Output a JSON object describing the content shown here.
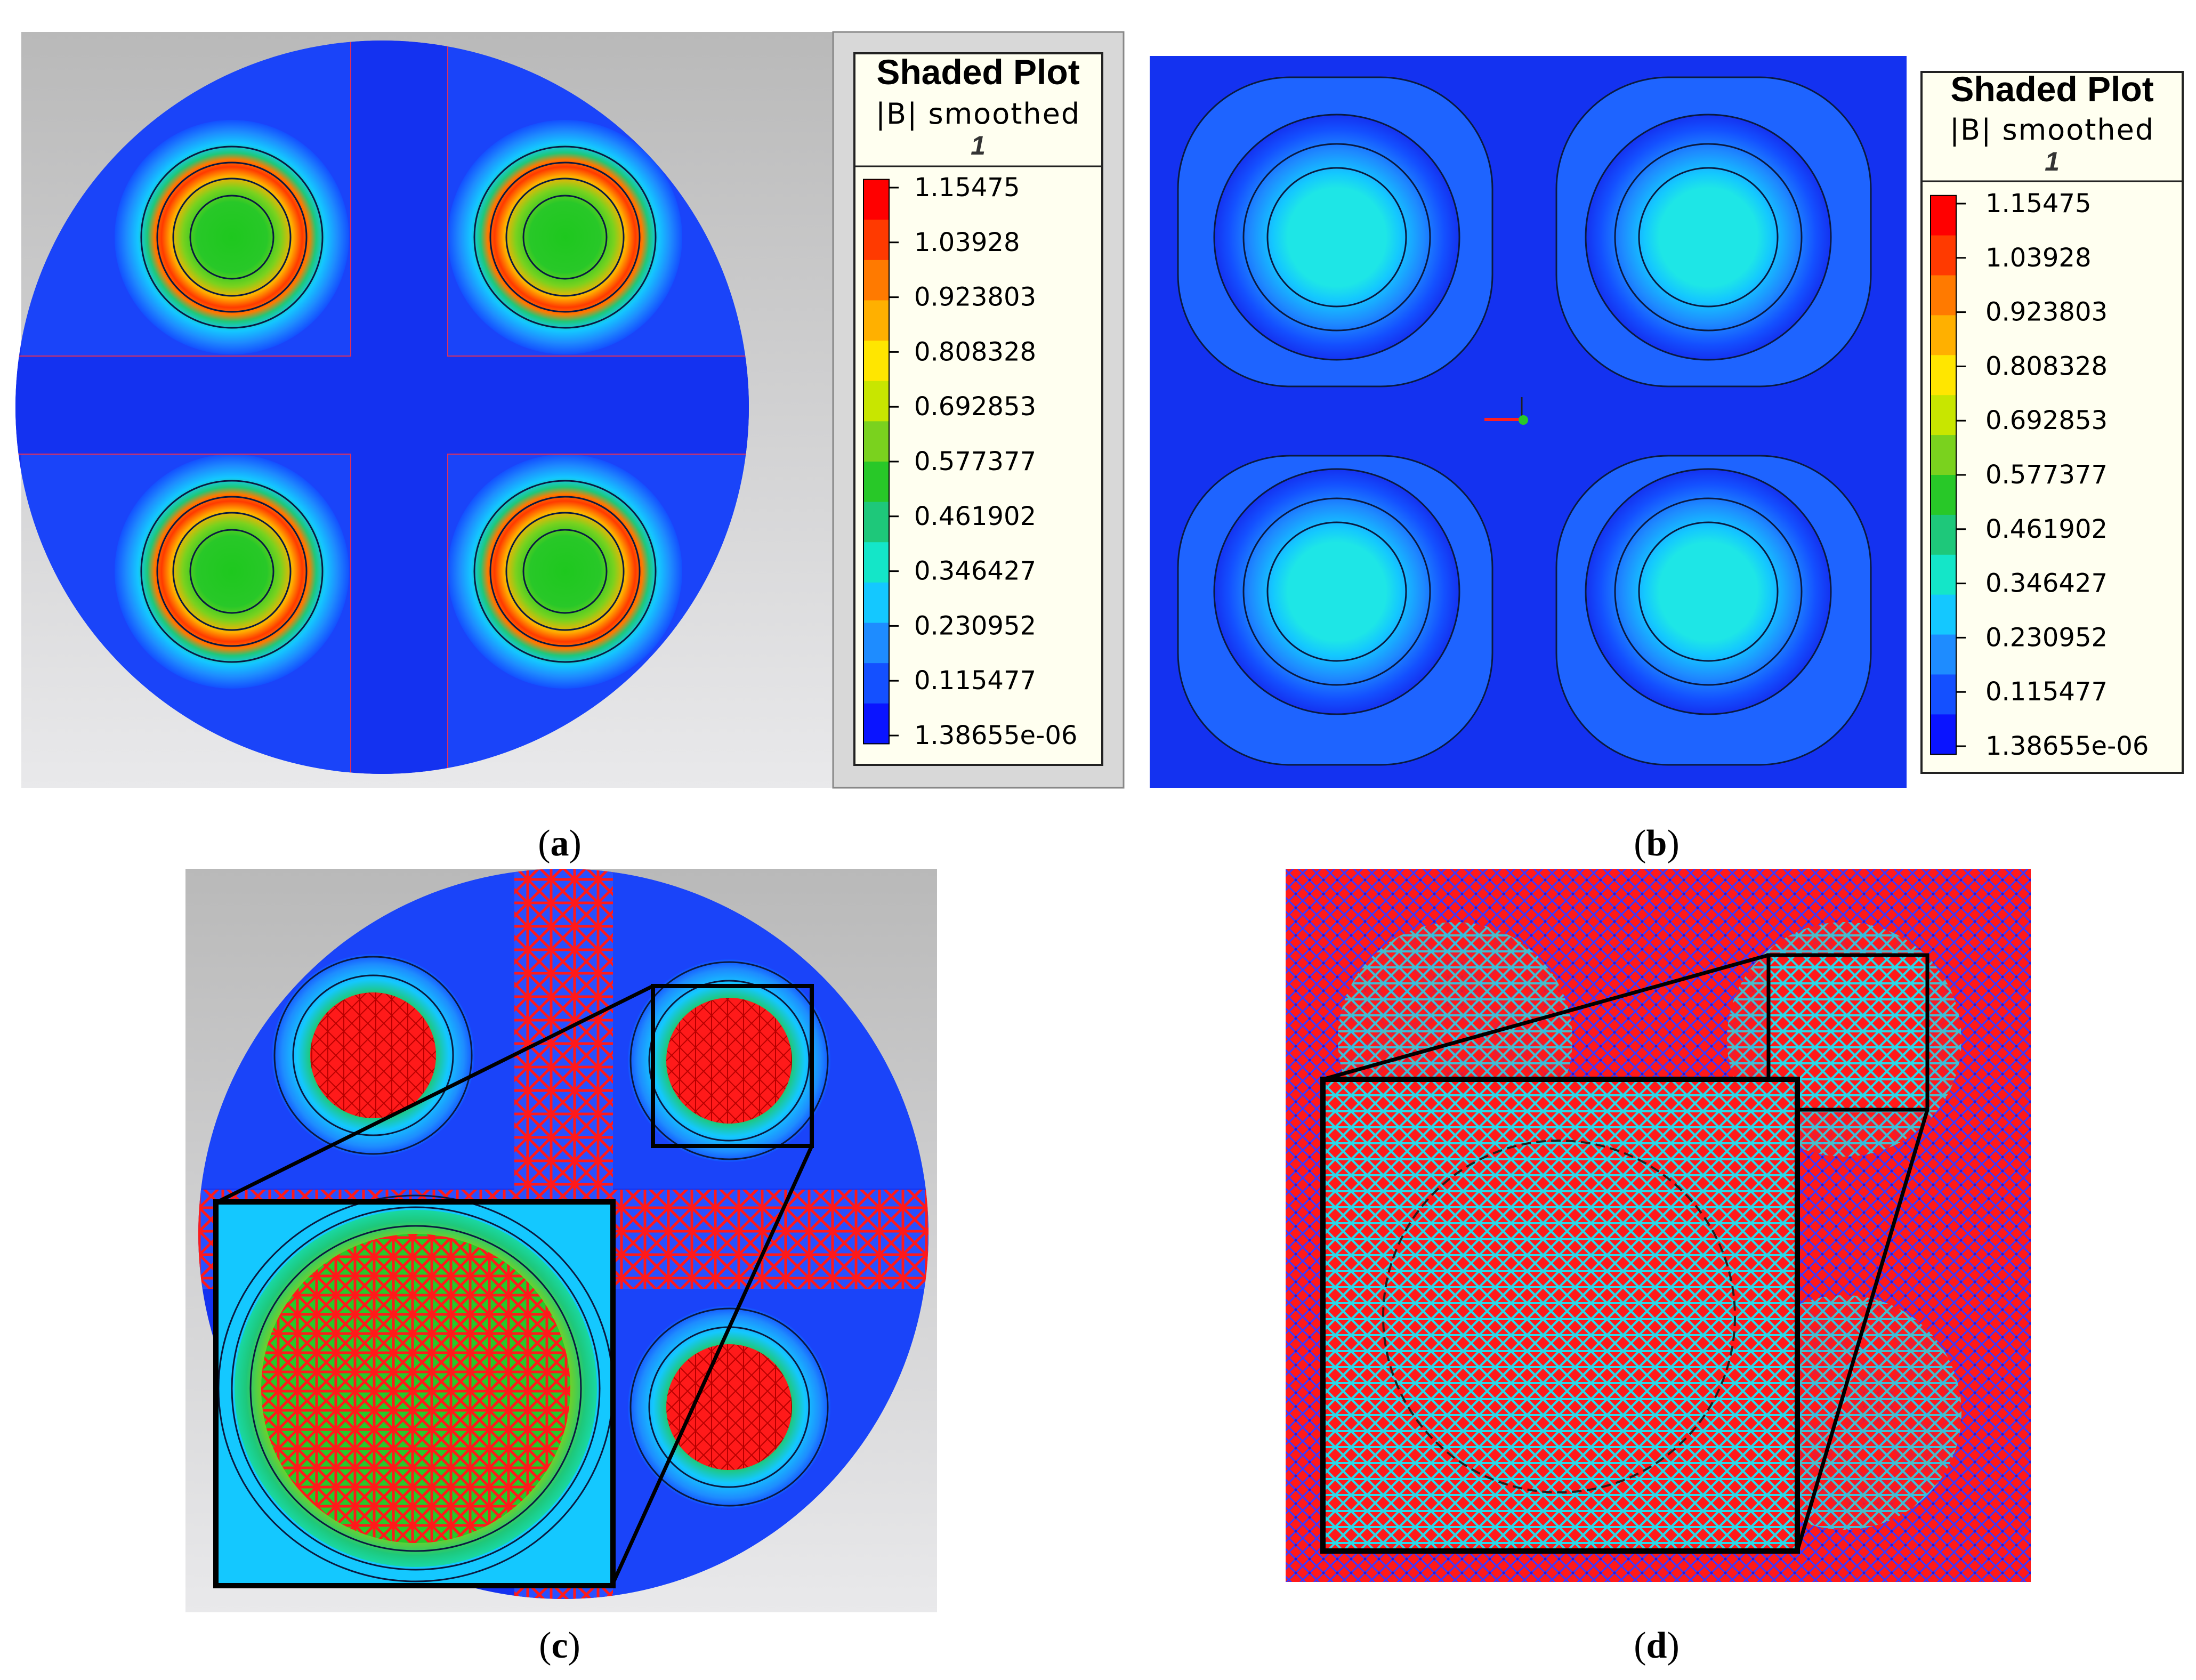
{
  "legend": {
    "title": "Shaded Plot",
    "subtitle": "|B| smoothed",
    "step": "1",
    "values": [
      "1.15475",
      "1.03928",
      "0.923803",
      "0.808328",
      "0.692853",
      "0.577377",
      "0.461902",
      "0.346427",
      "0.230952",
      "0.115477",
      "1.38655e-06"
    ],
    "colors": [
      "#ff0000",
      "#ff3a00",
      "#ff7a00",
      "#ffb000",
      "#ffe600",
      "#c8e600",
      "#7ad21e",
      "#28c828",
      "#1ec87a",
      "#14e6c8",
      "#14c8ff",
      "#1e8cff",
      "#1450ff",
      "#0a14ff"
    ]
  },
  "captions": {
    "a": "a",
    "b": "b",
    "c": "c",
    "d": "d"
  },
  "colors": {
    "background_blue": "#1432f0",
    "mesh_red": "#ff1a1a",
    "cyan": "#1ee6e6",
    "green": "#1ec81e"
  }
}
